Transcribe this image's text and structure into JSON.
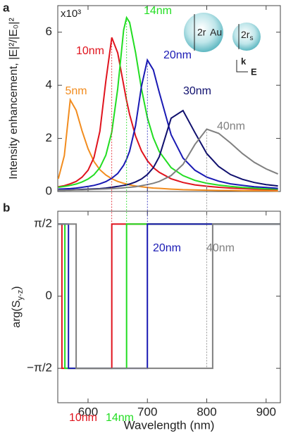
{
  "chart_data": [
    {
      "type": "line",
      "panel_label": "a",
      "ylabel": "Intensity enhancement, |E|²/|E₀|²",
      "multiplier": "x10³",
      "inset": {
        "core_diameter": "2r",
        "material": "Au",
        "shell_diameter": "2r",
        "shell_subscript": "s",
        "k": "k",
        "e": "E"
      },
      "xlim": [
        549,
        924
      ],
      "xticks": [
        600,
        700,
        800,
        900
      ],
      "ylim": [
        0,
        7
      ],
      "yticks": [
        0,
        2,
        4,
        6
      ],
      "x": [
        550,
        560,
        570,
        580,
        590,
        600,
        610,
        620,
        630,
        640,
        650,
        660,
        665,
        670,
        680,
        690,
        700,
        710,
        720,
        740,
        760,
        780,
        800,
        820,
        840,
        860,
        880,
        900,
        920
      ],
      "series": [
        {
          "name": "5nm",
          "color": "#f28c1e",
          "values": [
            0.48,
            1.35,
            3.45,
            3.06,
            2.28,
            1.61,
            1.13,
            0.82,
            0.62,
            0.48,
            0.38,
            0.31,
            0.28,
            0.25,
            0.21,
            0.18,
            0.15,
            0.13,
            0.12,
            0.09,
            0.07,
            0.06,
            0.05,
            0.04,
            0.04,
            0.03,
            0.03,
            0.03,
            0.02
          ]
        },
        {
          "name": "10nm",
          "color": "#e0141e",
          "values": [
            0.18,
            0.22,
            0.29,
            0.38,
            0.54,
            0.8,
            1.28,
            2.27,
            4.17,
            5.8,
            5.22,
            4.02,
            3.42,
            2.9,
            2.09,
            1.53,
            1.16,
            0.9,
            0.72,
            0.48,
            0.34,
            0.25,
            0.2,
            0.16,
            0.13,
            0.11,
            0.09,
            0.08,
            0.07
          ]
        },
        {
          "name": "14nm",
          "color": "#22dd22",
          "values": [
            0.16,
            0.19,
            0.23,
            0.28,
            0.36,
            0.47,
            0.63,
            0.9,
            1.37,
            2.24,
            3.87,
            6.08,
            6.55,
            6.37,
            5.24,
            3.87,
            2.78,
            2.02,
            1.5,
            0.9,
            0.6,
            0.42,
            0.31,
            0.24,
            0.19,
            0.15,
            0.13,
            0.1,
            0.09
          ]
        },
        {
          "name": "20nm",
          "color": "#1a1ab4",
          "values": [
            0.09,
            0.1,
            0.11,
            0.13,
            0.16,
            0.19,
            0.23,
            0.29,
            0.37,
            0.5,
            0.68,
            0.99,
            1.22,
            1.52,
            2.48,
            3.96,
            4.95,
            4.58,
            3.73,
            2.14,
            1.26,
            0.8,
            0.54,
            0.39,
            0.29,
            0.23,
            0.18,
            0.15,
            0.12
          ]
        },
        {
          "name": "30nm",
          "color": "#10106e",
          "values": [
            0.05,
            0.05,
            0.06,
            0.07,
            0.08,
            0.09,
            0.1,
            0.11,
            0.13,
            0.16,
            0.19,
            0.23,
            0.25,
            0.28,
            0.36,
            0.47,
            0.64,
            0.9,
            1.31,
            2.76,
            3.05,
            2.22,
            1.43,
            0.94,
            0.64,
            0.46,
            0.34,
            0.26,
            0.21
          ]
        },
        {
          "name": "40nm",
          "color": "#808080",
          "values": [
            0.05,
            0.05,
            0.05,
            0.06,
            0.06,
            0.07,
            0.08,
            0.09,
            0.1,
            0.11,
            0.12,
            0.14,
            0.15,
            0.16,
            0.18,
            0.22,
            0.26,
            0.31,
            0.38,
            0.6,
            1.02,
            1.77,
            2.35,
            2.19,
            1.83,
            1.43,
            1.1,
            0.85,
            0.66
          ]
        }
      ]
    },
    {
      "type": "step",
      "panel_label": "b",
      "ylabel": "arg(S",
      "ylabel_subscript": "y-z",
      "ylabel_close": ")",
      "xlabel": "Wavelength (nm)",
      "xlim": [
        549,
        924
      ],
      "xticks": [
        600,
        700,
        800,
        900
      ],
      "ylim": [
        -2.32,
        1.85
      ],
      "yticks": [
        {
          "value": -1.5708,
          "label": "−π/2"
        },
        0,
        {
          "value": 1.5708,
          "label": "π/2"
        }
      ],
      "series": [
        {
          "name": "10nm",
          "color": "#e0141e",
          "x": [
            549,
            556,
            556,
            640,
            640,
            924
          ],
          "values": [
            1.5708,
            1.5708,
            -1.5708,
            -1.5708,
            1.5708,
            1.5708
          ]
        },
        {
          "name": "14nm",
          "color": "#22dd22",
          "x": [
            549,
            561,
            561,
            665,
            665,
            924
          ],
          "values": [
            1.5708,
            1.5708,
            -1.5708,
            -1.5708,
            1.5708,
            1.5708
          ]
        },
        {
          "name": "20nm",
          "color": "#1a1ab4",
          "x": [
            549,
            567,
            567,
            700,
            700,
            924
          ],
          "values": [
            1.5708,
            1.5708,
            -1.5708,
            -1.5708,
            1.5708,
            1.5708
          ]
        },
        {
          "name": "40nm",
          "color": "#808080",
          "x": [
            549,
            580,
            580,
            810,
            810,
            924
          ],
          "values": [
            1.5708,
            1.5708,
            -1.5708,
            -1.5708,
            1.5708,
            1.5708
          ]
        }
      ]
    }
  ]
}
